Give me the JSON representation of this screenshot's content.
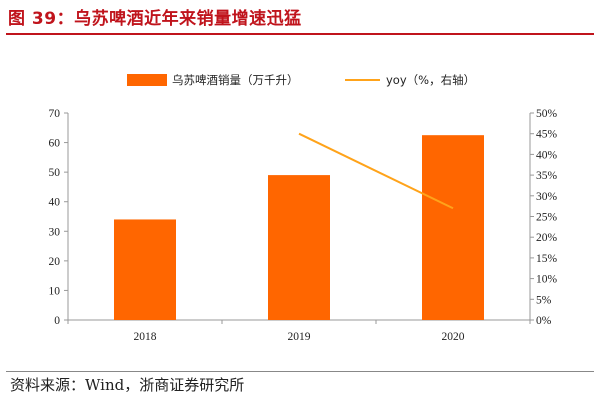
{
  "title": "图 39：乌苏啤酒近年来销量增速迅猛",
  "source": "资料来源：Wind，浙商证券研究所",
  "colors": {
    "title": "#c0141c",
    "bar": "#ff6600",
    "line": "#ffa31a"
  },
  "chart_data": {
    "type": "bar",
    "categories": [
      "2018",
      "2019",
      "2020"
    ],
    "series": [
      {
        "name": "乌苏啤酒销量（万千升）",
        "type": "bar",
        "axis": "left",
        "values": [
          34,
          49,
          62.5
        ]
      },
      {
        "name": "yoy（%，右轴）",
        "type": "line",
        "axis": "right",
        "values": [
          null,
          45,
          27
        ]
      }
    ],
    "ylim_left": [
      0,
      70
    ],
    "yticks_left": [
      "0",
      "10",
      "20",
      "30",
      "40",
      "50",
      "60",
      "70"
    ],
    "ylim_right": [
      0,
      50
    ],
    "yticks_right": [
      "0%",
      "5%",
      "10%",
      "15%",
      "20%",
      "25%",
      "30%",
      "35%",
      "40%",
      "45%",
      "50%"
    ],
    "legend_position": "top",
    "grid": false
  }
}
